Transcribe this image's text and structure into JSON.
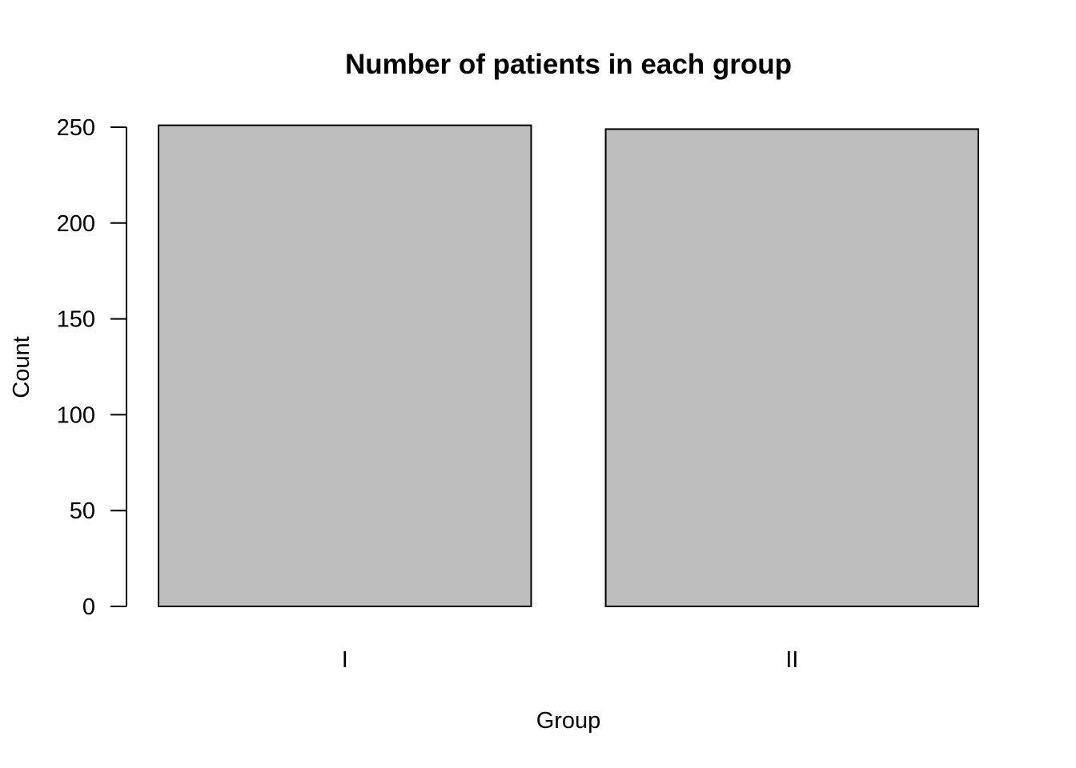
{
  "chart_data": {
    "type": "bar",
    "title": "Number of patients in each group",
    "xlabel": "Group",
    "ylabel": "Count",
    "categories": [
      "I",
      "II"
    ],
    "values": [
      251,
      249
    ],
    "ylim": [
      0,
      250
    ],
    "yticks": [
      0,
      50,
      100,
      150,
      200,
      250
    ],
    "grid": false,
    "bar_color": "#bebebe",
    "edge_color": "#000000"
  }
}
